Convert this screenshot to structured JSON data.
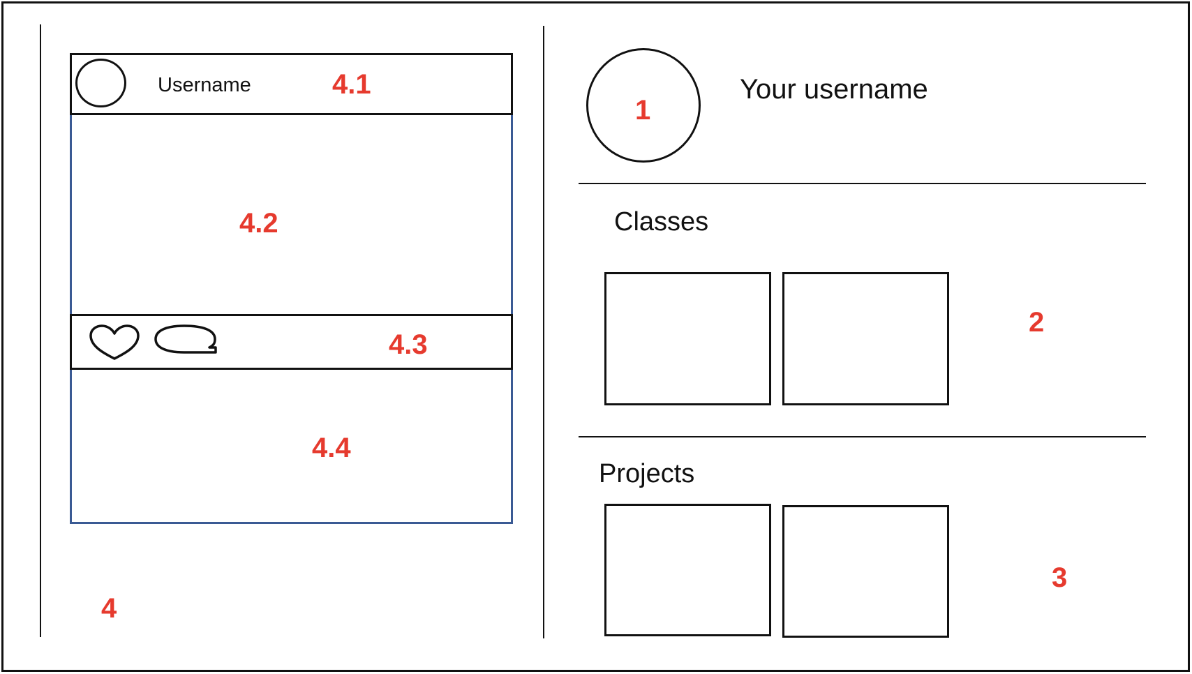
{
  "feed": {
    "post": {
      "header": {
        "username": "Username"
      }
    }
  },
  "profile": {
    "username": "Your username",
    "classes": {
      "title": "Classes",
      "card_count": 2
    },
    "projects": {
      "title": "Projects",
      "card_count": 2
    }
  },
  "annotations": {
    "profile_header": "1",
    "classes_section": "2",
    "projects_section": "3",
    "feed_column": "4",
    "post_header": "4.1",
    "post_image": "4.2",
    "post_actions": "4.3",
    "post_caption": "4.4"
  },
  "colors": {
    "annotation": "#e63a2e",
    "post_border": "#3a5a94",
    "line": "#111111"
  },
  "icons": [
    "avatar-icon",
    "heart-icon",
    "comment-icon"
  ]
}
